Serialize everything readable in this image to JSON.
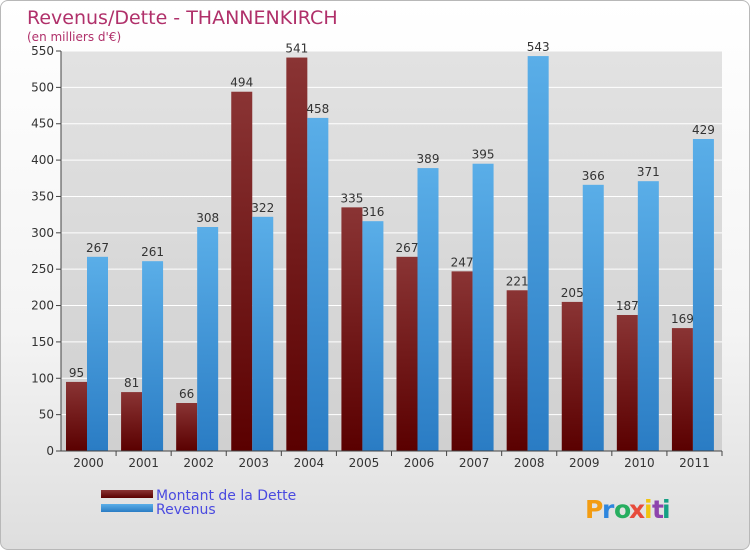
{
  "chart_data": {
    "type": "bar",
    "title": "Revenus/Dette - THANNENKIRCH",
    "subtitle": "(en milliers d'€)",
    "categories": [
      "2000",
      "2001",
      "2002",
      "2003",
      "2004",
      "2005",
      "2006",
      "2007",
      "2008",
      "2009",
      "2010",
      "2011"
    ],
    "series": [
      {
        "name": "Montant de la Dette",
        "color": "#7a1f1f",
        "values": [
          95,
          81,
          66,
          494,
          541,
          335,
          267,
          247,
          221,
          205,
          187,
          169
        ]
      },
      {
        "name": "Revenus",
        "color": "#3a95dc",
        "values": [
          267,
          261,
          308,
          322,
          458,
          316,
          389,
          395,
          543,
          366,
          371,
          429
        ]
      }
    ],
    "yticks": [
      0,
      50,
      100,
      150,
      200,
      250,
      300,
      350,
      400,
      450,
      500,
      550
    ],
    "ylim": [
      0,
      550
    ],
    "grid": true,
    "legend_position": "bottom-left"
  },
  "brand": {
    "letters": [
      "P",
      "r",
      "o",
      "x",
      "i",
      "t",
      "i"
    ],
    "colors": [
      "#f39c12",
      "#2e86de",
      "#27ae60",
      "#e74c3c",
      "#f1c40f",
      "#8e44ad",
      "#16a085"
    ]
  }
}
